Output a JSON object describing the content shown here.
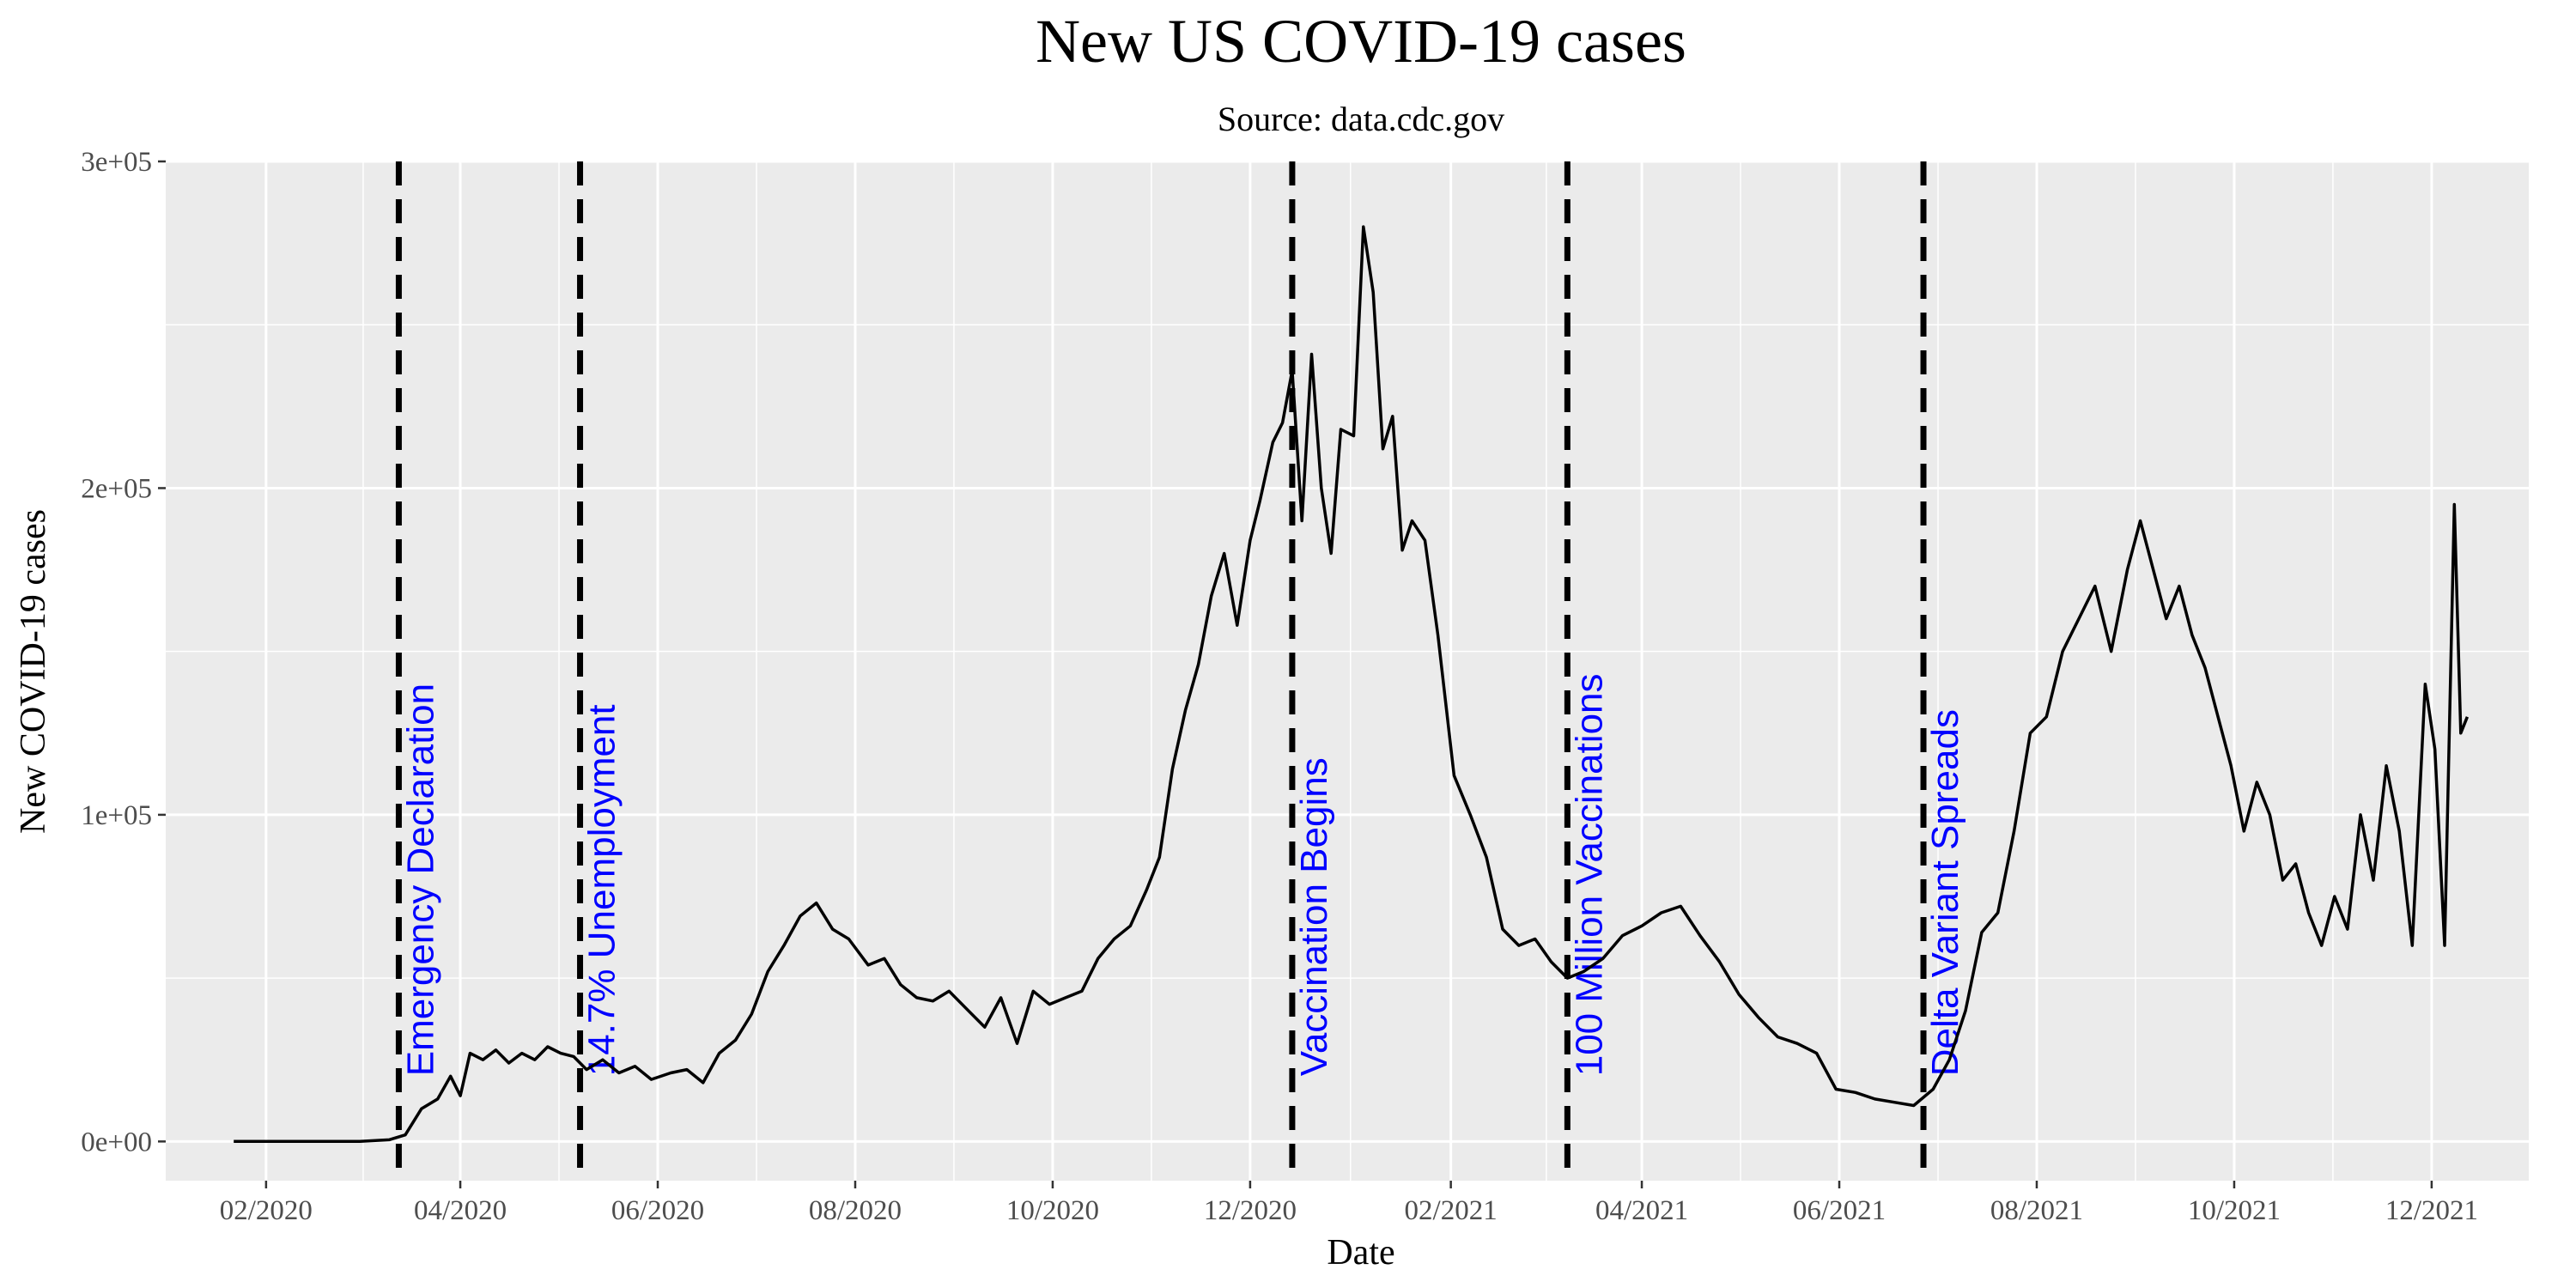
{
  "chart_data": {
    "type": "line",
    "title": "New US COVID-19 cases",
    "subtitle": "Source: data.cdc.gov",
    "xlabel": "Date",
    "ylabel": "New COVID-19 cases",
    "x_range": [
      "2020-01-01",
      "2021-12-31"
    ],
    "ylim": [
      -12000,
      300000
    ],
    "y_ticks": [
      0,
      100000,
      200000,
      300000
    ],
    "y_tick_labels": [
      "0e+00",
      "1e+05",
      "2e+05",
      "3e+05"
    ],
    "x_ticks": [
      "2020-02-01",
      "2020-04-01",
      "2020-06-01",
      "2020-08-01",
      "2020-10-01",
      "2020-12-01",
      "2021-02-01",
      "2021-04-01",
      "2021-06-01",
      "2021-08-01",
      "2021-10-01",
      "2021-12-01"
    ],
    "x_tick_labels": [
      "02/2020",
      "04/2020",
      "06/2020",
      "08/2020",
      "10/2020",
      "12/2020",
      "02/2021",
      "04/2021",
      "06/2021",
      "08/2021",
      "10/2021",
      "12/2021"
    ],
    "grid": true,
    "line_color": "#000000",
    "panel_color": "#ebebeb",
    "event_color": "#0000ff",
    "events": [
      {
        "date": "2020-03-13",
        "label": "Emergency Declaration"
      },
      {
        "date": "2020-05-08",
        "label": "14.7% Unemployment"
      },
      {
        "date": "2020-12-14",
        "label": "Vaccination Begins"
      },
      {
        "date": "2021-03-09",
        "label": "100 Million Vaccinations"
      },
      {
        "date": "2021-06-27",
        "label": "Delta Variant Spreads"
      }
    ],
    "series": [
      {
        "name": "New US COVID-19 cases",
        "dates": [
          "2020-01-22",
          "2020-02-15",
          "2020-03-01",
          "2020-03-10",
          "2020-03-15",
          "2020-03-20",
          "2020-03-25",
          "2020-03-29",
          "2020-04-01",
          "2020-04-04",
          "2020-04-08",
          "2020-04-12",
          "2020-04-16",
          "2020-04-20",
          "2020-04-24",
          "2020-04-28",
          "2020-05-02",
          "2020-05-06",
          "2020-05-10",
          "2020-05-15",
          "2020-05-20",
          "2020-05-25",
          "2020-05-30",
          "2020-06-05",
          "2020-06-10",
          "2020-06-15",
          "2020-06-20",
          "2020-06-25",
          "2020-06-30",
          "2020-07-05",
          "2020-07-10",
          "2020-07-15",
          "2020-07-20",
          "2020-07-25",
          "2020-07-30",
          "2020-08-05",
          "2020-08-10",
          "2020-08-15",
          "2020-08-20",
          "2020-08-25",
          "2020-08-30",
          "2020-09-05",
          "2020-09-10",
          "2020-09-15",
          "2020-09-20",
          "2020-09-25",
          "2020-09-30",
          "2020-10-05",
          "2020-10-10",
          "2020-10-15",
          "2020-10-20",
          "2020-10-25",
          "2020-10-30",
          "2020-11-03",
          "2020-11-07",
          "2020-11-11",
          "2020-11-15",
          "2020-11-19",
          "2020-11-23",
          "2020-11-27",
          "2020-12-01",
          "2020-12-04",
          "2020-12-08",
          "2020-12-11",
          "2020-12-14",
          "2020-12-17",
          "2020-12-20",
          "2020-12-23",
          "2020-12-26",
          "2020-12-29",
          "2021-01-02",
          "2021-01-05",
          "2021-01-08",
          "2021-01-11",
          "2021-01-14",
          "2021-01-17",
          "2021-01-20",
          "2021-01-24",
          "2021-01-28",
          "2021-02-02",
          "2021-02-07",
          "2021-02-12",
          "2021-02-17",
          "2021-02-22",
          "2021-02-27",
          "2021-03-04",
          "2021-03-09",
          "2021-03-14",
          "2021-03-20",
          "2021-03-26",
          "2021-04-01",
          "2021-04-07",
          "2021-04-13",
          "2021-04-19",
          "2021-04-25",
          "2021-05-01",
          "2021-05-07",
          "2021-05-13",
          "2021-05-19",
          "2021-05-25",
          "2021-05-31",
          "2021-06-06",
          "2021-06-12",
          "2021-06-18",
          "2021-06-24",
          "2021-06-30",
          "2021-07-05",
          "2021-07-10",
          "2021-07-15",
          "2021-07-20",
          "2021-07-25",
          "2021-07-30",
          "2021-08-04",
          "2021-08-09",
          "2021-08-14",
          "2021-08-19",
          "2021-08-24",
          "2021-08-29",
          "2021-09-02",
          "2021-09-06",
          "2021-09-10",
          "2021-09-14",
          "2021-09-18",
          "2021-09-22",
          "2021-09-26",
          "2021-09-30",
          "2021-10-04",
          "2021-10-08",
          "2021-10-12",
          "2021-10-16",
          "2021-10-20",
          "2021-10-24",
          "2021-10-28",
          "2021-11-01",
          "2021-11-05",
          "2021-11-09",
          "2021-11-13",
          "2021-11-17",
          "2021-11-21",
          "2021-11-25",
          "2021-11-29",
          "2021-12-02",
          "2021-12-05",
          "2021-12-08",
          "2021-12-10",
          "2021-12-12"
        ],
        "values": [
          0,
          0,
          0,
          500,
          2000,
          10000,
          13000,
          20000,
          14000,
          27000,
          25000,
          28000,
          24000,
          27000,
          25000,
          29000,
          27000,
          26000,
          22000,
          25000,
          21000,
          23000,
          19000,
          21000,
          22000,
          18000,
          27000,
          31000,
          39000,
          52000,
          60000,
          69000,
          73000,
          65000,
          62000,
          54000,
          56000,
          48000,
          44000,
          43000,
          46000,
          40000,
          35000,
          44000,
          30000,
          46000,
          42000,
          44000,
          46000,
          56000,
          62000,
          66000,
          77000,
          87000,
          114000,
          132000,
          146000,
          167000,
          180000,
          158000,
          184000,
          196000,
          214000,
          220000,
          236000,
          190000,
          241000,
          200000,
          180000,
          218000,
          216000,
          280000,
          260000,
          212000,
          222000,
          181000,
          190000,
          184000,
          155000,
          112000,
          100000,
          87000,
          65000,
          60000,
          62000,
          55000,
          50000,
          52000,
          56000,
          63000,
          66000,
          70000,
          72000,
          63000,
          55000,
          45000,
          38000,
          32000,
          30000,
          27000,
          16000,
          15000,
          13000,
          12000,
          11000,
          16000,
          25000,
          40000,
          64000,
          70000,
          95000,
          125000,
          130000,
          150000,
          160000,
          170000,
          150000,
          175000,
          190000,
          175000,
          160000,
          170000,
          155000,
          145000,
          130000,
          115000,
          95000,
          110000,
          100000,
          80000,
          85000,
          70000,
          60000,
          75000,
          65000,
          100000,
          80000,
          115000,
          95000,
          60000,
          140000,
          120000,
          60000,
          195000,
          125000,
          130000
        ]
      }
    ]
  }
}
